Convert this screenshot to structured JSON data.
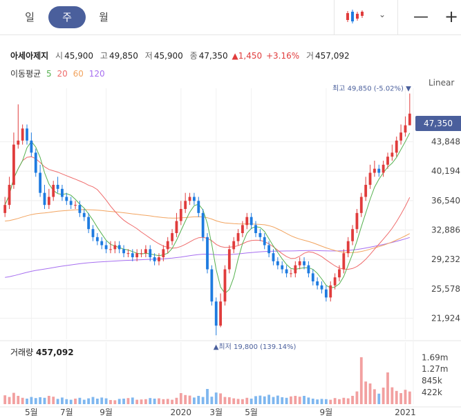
{
  "toolbar": {
    "periods": [
      "일",
      "주",
      "월"
    ],
    "active_period": "주"
  },
  "stock": {
    "name": "아세아제지",
    "open_label": "시",
    "open": "45,900",
    "high_label": "고",
    "high": "49,850",
    "low_label": "저",
    "low": "45,900",
    "close_label": "종",
    "close": "47,350",
    "change": "▲1,450",
    "change_pct": "+3.16%",
    "volume_label": "거",
    "volume": "457,092"
  },
  "ma": {
    "label": "이동평균",
    "periods": [
      {
        "text": "5",
        "color": "#55b14f"
      },
      {
        "text": "20",
        "color": "#ef6b6b"
      },
      {
        "text": "60",
        "color": "#f2a35e"
      },
      {
        "text": "120",
        "color": "#a66ef0"
      }
    ]
  },
  "scale_mode": "Linear",
  "current_price_box": "47,350",
  "annotations": {
    "high": "최고 49,850 (-5.02%) ▼",
    "low": "▲최저 19,800 (139.14%)"
  },
  "volume_panel": {
    "label": "거래량",
    "value": "457,092"
  },
  "colors": {
    "accent": "#4a5f9c",
    "up": "#e03c3c",
    "down": "#1e7be0",
    "vol_up": "#f2a0a0",
    "vol_down": "#7fb7ef"
  },
  "chart_data": {
    "type": "candlestick",
    "price_axis_labels": [
      "47,350",
      "43,848",
      "40,194",
      "36,540",
      "32,886",
      "29,232",
      "25,578",
      "21,924"
    ],
    "price_ticks": [
      43848,
      40194,
      36540,
      32886,
      29232,
      25578,
      21924
    ],
    "ylim": [
      19300,
      50500
    ],
    "x_labels": [
      {
        "text": "5월",
        "index": 6
      },
      {
        "text": "7월",
        "index": 14
      },
      {
        "text": "9월",
        "index": 23
      },
      {
        "text": "2020",
        "index": 40
      },
      {
        "text": "3월",
        "index": 48
      },
      {
        "text": "5월",
        "index": 56
      },
      {
        "text": "9월",
        "index": 73
      },
      {
        "text": "2021",
        "index": 91
      }
    ],
    "volume_axis_labels": [
      "1.69m",
      "1.27m",
      "845k",
      "422k"
    ],
    "volume_ticks": [
      1690000,
      1270000,
      845000,
      422000
    ],
    "volume_max": 2000000,
    "closes": [
      36000,
      38500,
      43500,
      44000,
      45500,
      44000,
      42500,
      40000,
      37500,
      36000,
      37000,
      38500,
      38000,
      37000,
      36500,
      36000,
      36000,
      35000,
      34500,
      33000,
      32000,
      31500,
      31000,
      30500,
      30500,
      31000,
      30500,
      30000,
      30000,
      29500,
      30000,
      30000,
      30500,
      29500,
      29000,
      29500,
      30500,
      31500,
      32500,
      34000,
      35500,
      36500,
      37000,
      36500,
      35000,
      32000,
      28000,
      24000,
      21000,
      24000,
      28000,
      30500,
      31500,
      32500,
      33500,
      34500,
      33500,
      32500,
      32000,
      31000,
      30000,
      29000,
      28500,
      28000,
      27500,
      27500,
      28500,
      29000,
      28500,
      27500,
      26500,
      26000,
      25500,
      24500,
      26000,
      27000,
      28000,
      30000,
      31500,
      33000,
      35000,
      37000,
      38500,
      40000,
      40500,
      40000,
      41000,
      42000,
      42500,
      44000,
      45000,
      45900,
      47350
    ],
    "opens": [
      35000,
      36000,
      38500,
      43500,
      44000,
      45500,
      44000,
      42500,
      40000,
      37500,
      36000,
      37000,
      38500,
      38000,
      37000,
      36500,
      36000,
      36000,
      35000,
      34500,
      33000,
      32000,
      31500,
      31000,
      30500,
      30500,
      31000,
      30500,
      30000,
      30000,
      29500,
      30000,
      30000,
      30500,
      29500,
      29000,
      29500,
      30500,
      31500,
      32500,
      34000,
      35500,
      36500,
      37000,
      36500,
      35000,
      32000,
      28000,
      24000,
      21000,
      24000,
      28000,
      30500,
      31500,
      32500,
      33500,
      34500,
      33500,
      32500,
      32000,
      31000,
      30000,
      29000,
      28500,
      28000,
      27500,
      27500,
      28500,
      29000,
      28500,
      27500,
      26500,
      26000,
      25500,
      24500,
      26000,
      27000,
      28000,
      30000,
      31500,
      33000,
      35000,
      37000,
      38500,
      40000,
      40500,
      40000,
      41000,
      42000,
      42500,
      44000,
      45000,
      45900
    ],
    "highs": [
      37000,
      39500,
      45000,
      48500,
      46000,
      46000,
      45000,
      43000,
      41000,
      38500,
      38000,
      39000,
      39500,
      38500,
      37500,
      37000,
      36500,
      36500,
      35500,
      35000,
      33500,
      32500,
      32000,
      31500,
      31500,
      31500,
      31500,
      31000,
      30500,
      30500,
      30500,
      30500,
      31000,
      31000,
      30000,
      30000,
      31000,
      32000,
      33000,
      35000,
      36500,
      37500,
      37500,
      37500,
      37000,
      35500,
      32500,
      28500,
      24500,
      25000,
      28500,
      31000,
      32000,
      33000,
      34000,
      35000,
      35000,
      34000,
      33000,
      32500,
      31500,
      30500,
      29500,
      29000,
      28500,
      28000,
      29000,
      29500,
      29500,
      29000,
      28000,
      27000,
      26500,
      26000,
      26500,
      27500,
      28500,
      30500,
      32000,
      33500,
      35500,
      37500,
      39500,
      41000,
      41500,
      41000,
      41500,
      42500,
      43500,
      44500,
      46000,
      47000,
      49850
    ],
    "lows": [
      34500,
      35500,
      38000,
      43000,
      43500,
      43500,
      42000,
      39500,
      37000,
      35500,
      35500,
      36500,
      37500,
      36500,
      36000,
      35500,
      35500,
      34500,
      34000,
      32500,
      31500,
      31000,
      30500,
      30000,
      30000,
      30000,
      30000,
      29500,
      29500,
      29000,
      29000,
      29500,
      29500,
      29000,
      28500,
      28500,
      29000,
      30000,
      31000,
      32000,
      33500,
      35000,
      36000,
      36000,
      34500,
      31500,
      27500,
      23500,
      19800,
      20800,
      23500,
      27500,
      30000,
      31000,
      32000,
      33000,
      33000,
      32000,
      31500,
      30500,
      29500,
      28500,
      28000,
      27500,
      27000,
      27000,
      27000,
      28000,
      28000,
      27000,
      26000,
      25500,
      25000,
      24000,
      24000,
      25500,
      26500,
      27500,
      29500,
      31000,
      32500,
      34500,
      36500,
      38000,
      39500,
      39500,
      39500,
      40500,
      41500,
      42000,
      43500,
      44500,
      45900
    ],
    "volumes": [
      320000,
      260000,
      410000,
      300000,
      230000,
      200000,
      260000,
      220000,
      250000,
      230000,
      300000,
      270000,
      190000,
      240000,
      180000,
      160000,
      200000,
      230000,
      160000,
      210000,
      260000,
      200000,
      240000,
      210000,
      150000,
      140000,
      190000,
      200000,
      220000,
      240000,
      160000,
      170000,
      180000,
      220000,
      200000,
      210000,
      180000,
      190000,
      160000,
      230000,
      400000,
      330000,
      310000,
      240000,
      300000,
      260000,
      550000,
      270000,
      420000,
      390000,
      260000,
      250000,
      210000,
      190000,
      180000,
      230000,
      200000,
      290000,
      310000,
      280000,
      340000,
      260000,
      310000,
      250000,
      230000,
      280000,
      300000,
      270000,
      300000,
      240000,
      200000,
      170000,
      190000,
      180000,
      160000,
      220000,
      180000,
      230000,
      210000,
      300000,
      460000,
      1700000,
      820000,
      750000,
      540000,
      380000,
      600000,
      1150000,
      610000,
      480000,
      400000,
      520000,
      457092
    ]
  }
}
